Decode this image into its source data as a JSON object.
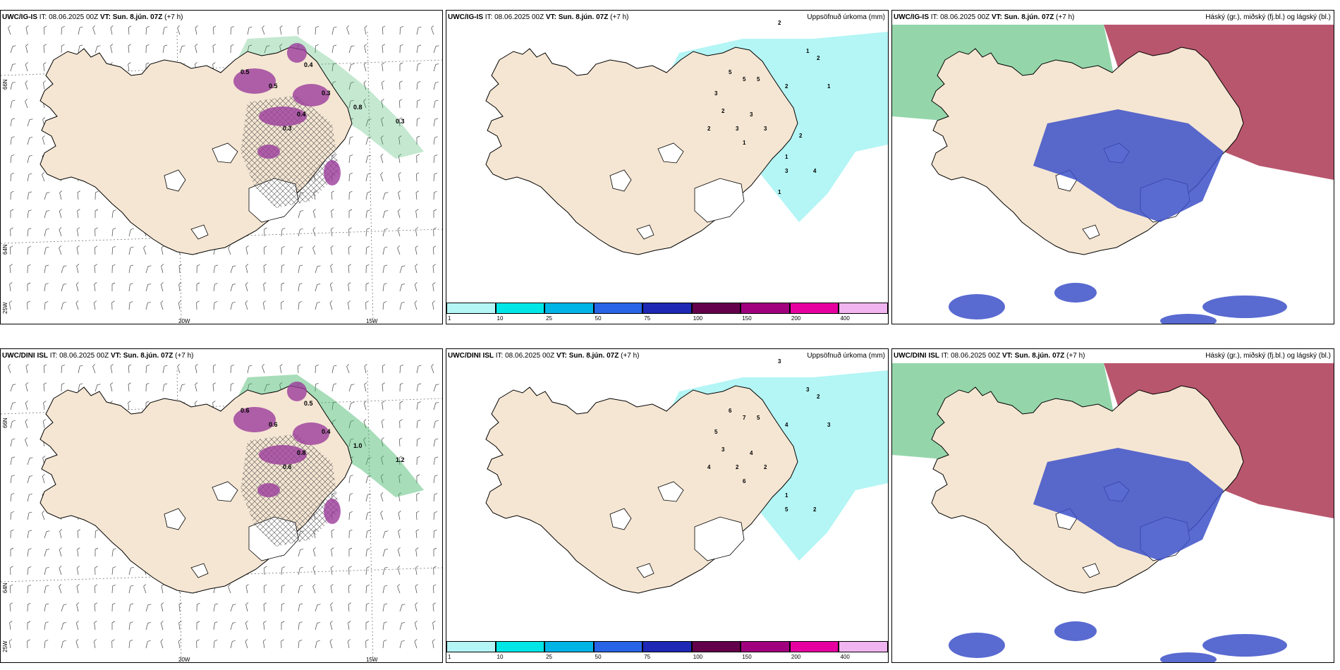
{
  "panels": [
    {
      "model": "UWC/IG-IS",
      "it": "IT: 08.06.2025 00Z",
      "vt_label": "VT:",
      "vt": "Sun. 8.jún. 07Z",
      "lead": "(+7 h)",
      "right_title": ""
    },
    {
      "model": "UWC/IG-IS",
      "it": "IT: 08.06.2025 00Z",
      "vt_label": "VT:",
      "vt": "Sun. 8.jún. 07Z",
      "lead": "(+7 h)",
      "right_title": "Uppsöfnuð úrkoma (mm)"
    },
    {
      "model": "UWC/IG-IS",
      "it": "IT: 08.06.2025 00Z",
      "vt_label": "VT:",
      "vt": "Sun. 8.jún. 07Z",
      "lead": "(+7 h)",
      "right_title": "Háský (gr.), miðský (fj.bl.) og lágský (bl.)"
    },
    {
      "model": "UWC/DINI ISL",
      "it": "IT: 08.06.2025 00Z",
      "vt_label": "VT:",
      "vt": "Sun. 8.jún. 07Z",
      "lead": "(+7 h)",
      "right_title": ""
    },
    {
      "model": "UWC/DINI ISL",
      "it": "IT: 08.06.2025 00Z",
      "vt_label": "VT:",
      "vt": "Sun. 8.jún. 07Z",
      "lead": "(+7 h)",
      "right_title": "Uppsöfnuð úrkoma (mm)"
    },
    {
      "model": "UWC/DINI ISL",
      "it": "IT: 08.06.2025 00Z",
      "vt_label": "VT:",
      "vt": "Sun. 8.jún. 07Z",
      "lead": "(+7 h)",
      "right_title": "Háský (gr.), miðský (fj.bl.) og lágský (bl.)"
    }
  ],
  "axis_labels": {
    "lon_20": "20W",
    "lon_15": "15W",
    "lat_66": "66N",
    "lat_64": "64N",
    "lon_25": "25W"
  },
  "colorbar": {
    "ticks": [
      "1",
      "10",
      "25",
      "50",
      "75",
      "100",
      "150",
      "200",
      "400"
    ],
    "colors": [
      "#b4f5f5",
      "#00e6e6",
      "#00b4e6",
      "#2864e6",
      "#1e28b4",
      "#64004b",
      "#a0007d",
      "#e600a0",
      "#f0b4f0"
    ]
  },
  "precip_labels_top": [
    "2",
    "2",
    "1",
    "1",
    "2",
    "5",
    "5",
    "5",
    "3",
    "3",
    "2",
    "3",
    "3",
    "2",
    "1",
    "1",
    "4",
    "3",
    "2",
    "1"
  ],
  "precip_labels_bottom": [
    "3",
    "2",
    "3",
    "3",
    "4",
    "6",
    "7",
    "5",
    "4",
    "5",
    "3",
    "2",
    "2",
    "4",
    "6",
    "1",
    "2",
    "5"
  ],
  "cloud_labels_top": [
    "0.5",
    "0.5",
    "0.4",
    "0.3",
    "0.8",
    "0.4",
    "0.3",
    "0.3"
  ],
  "cloud_labels_bottom": [
    "0.6",
    "0.6",
    "0.5",
    "0.4",
    "1.0",
    "0.8",
    "0.6",
    "1.2"
  ],
  "map_colors": {
    "land": "#f5e6d3",
    "ocean": "#ffffff",
    "glacier": "#ffffff",
    "rain_light": "#b4f5f5",
    "green": "#3cb464",
    "purple": "#9b3c9b",
    "blue": "#3c50c8",
    "red": "#a01e3c"
  }
}
